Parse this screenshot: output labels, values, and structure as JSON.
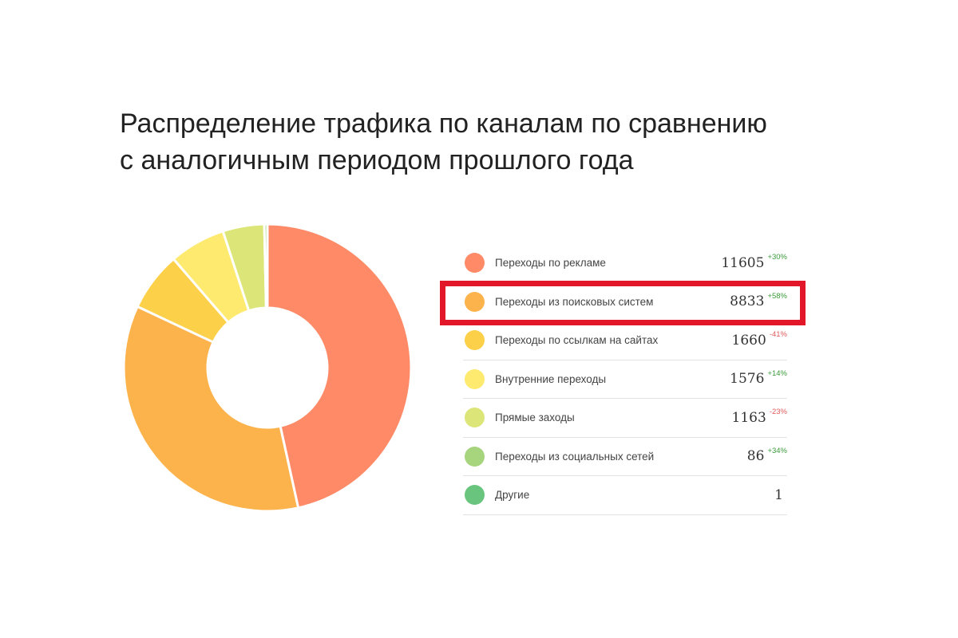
{
  "title": "Распределение трафика по каналам по сравнению с аналогичным периодом прошлого года",
  "chart_data": {
    "type": "pie",
    "donut": true,
    "title": "Распределение трафика по каналам по сравнению с аналогичным периодом прошлого года",
    "categories": [
      "Переходы по рекламе",
      "Переходы из поисковых систем",
      "Переходы по ссылкам на сайтах",
      "Внутренние переходы",
      "Прямые заходы",
      "Переходы из социальных сетей",
      "Другие"
    ],
    "values": [
      11605,
      8833,
      1660,
      1576,
      1163,
      86,
      1
    ],
    "values_text": [
      "11605",
      "8833",
      "1660",
      "1576",
      "1163",
      "86",
      "1"
    ],
    "changes": [
      "+30%",
      "+58%",
      "-41%",
      "+14%",
      "-23%",
      "+34%",
      ""
    ],
    "colors": [
      "#fe8a67",
      "#fcb34c",
      "#fdd04a",
      "#feea6e",
      "#dce678",
      "#a6d57e",
      "#69c47d"
    ],
    "legend_position": "right",
    "highlighted": "Переходы из поисковых систем"
  },
  "annotation": {
    "highlight_color": "#e3172a"
  }
}
